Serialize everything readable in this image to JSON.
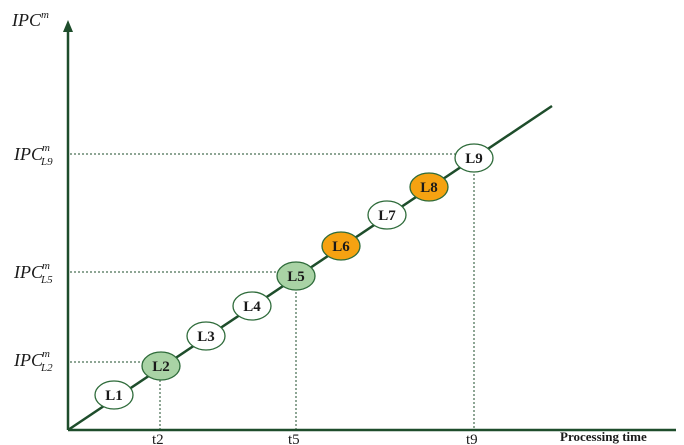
{
  "y_axis": {
    "base": "IPC",
    "sup": "m"
  },
  "x_axis": {
    "label": "Processing time"
  },
  "y_ticks": [
    {
      "base": "IPC",
      "sup": "m",
      "sub": "L9"
    },
    {
      "base": "IPC",
      "sup": "m",
      "sub": "L5"
    },
    {
      "base": "IPC",
      "sup": "m",
      "sub": "L2"
    }
  ],
  "x_ticks": [
    "t2",
    "t5",
    "t9"
  ],
  "nodes": [
    {
      "label": "L1",
      "fill": "#ffffff"
    },
    {
      "label": "L2",
      "fill": "#a9d3a5"
    },
    {
      "label": "L3",
      "fill": "#ffffff"
    },
    {
      "label": "L4",
      "fill": "#ffffff"
    },
    {
      "label": "L5",
      "fill": "#a9d3a5"
    },
    {
      "label": "L6",
      "fill": "#f5a211"
    },
    {
      "label": "L7",
      "fill": "#ffffff"
    },
    {
      "label": "L8",
      "fill": "#f5a211"
    },
    {
      "label": "L9",
      "fill": "#ffffff"
    }
  ],
  "colors": {
    "line": "#1e4d2b",
    "highlight_green": "#a9d3a5",
    "highlight_orange": "#f5a211"
  }
}
